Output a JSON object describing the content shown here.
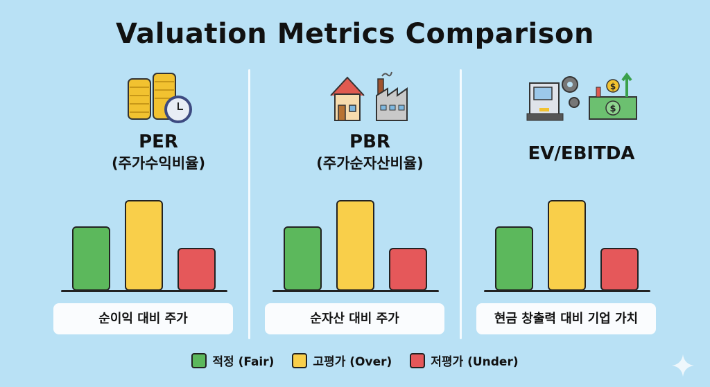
{
  "title": "Valuation Metrics Comparison",
  "colors": {
    "fair": "#5cb85c",
    "over": "#f9cf4a",
    "under": "#e5585a"
  },
  "panels": [
    {
      "name": "PER",
      "subtitle": "(주가수익비율)",
      "label": "순이익 대비 주가",
      "icons": [
        "coin-stack-icon",
        "clock-icon"
      ]
    },
    {
      "name": "PBR",
      "subtitle": "(주가순자산비율)",
      "label": "순자산 대비 주가",
      "icons": [
        "house-icon",
        "factory-icon"
      ]
    },
    {
      "name": "EV/EBITDA",
      "subtitle": "",
      "label": "현금 창출력 대비 기업 가치",
      "icons": [
        "machine-gear-icon",
        "cash-growth-icon"
      ]
    }
  ],
  "chart_data": {
    "type": "bar",
    "categories": [
      "적정 (Fair)",
      "고평가 (Over)",
      "저평가 (Under)"
    ],
    "relative_values": [
      71,
      100,
      47
    ]
  },
  "legend": [
    {
      "label": "적정 (Fair)",
      "color": "#5cb85c"
    },
    {
      "label": "고평가 (Over)",
      "color": "#f9cf4a"
    },
    {
      "label": "저평가 (Under)",
      "color": "#e5585a"
    }
  ]
}
